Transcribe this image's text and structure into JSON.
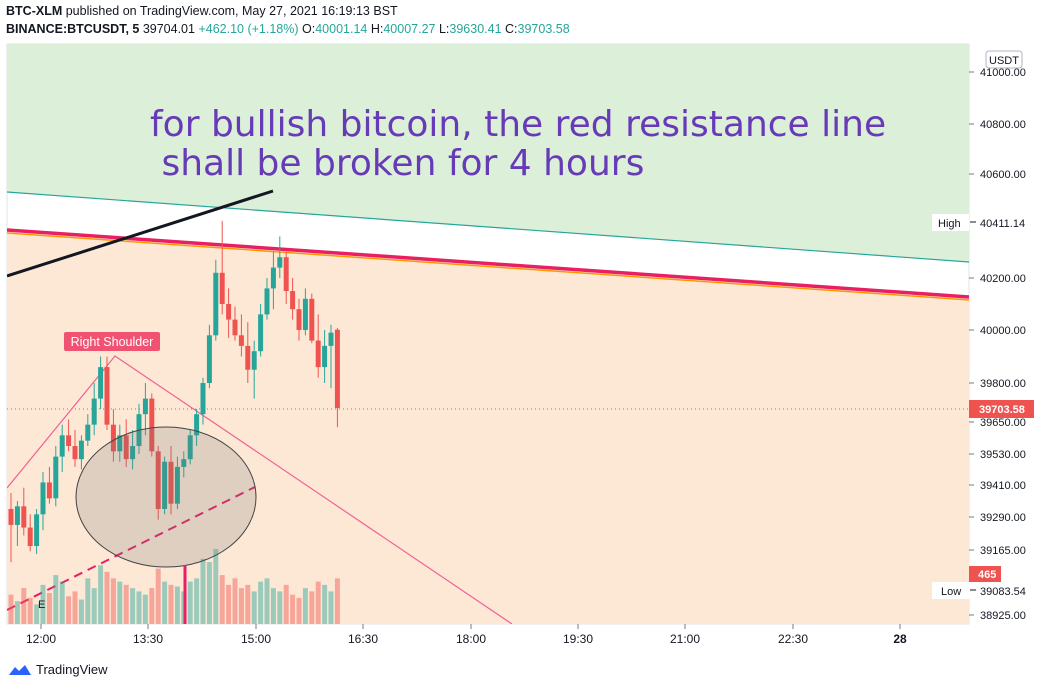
{
  "header": {
    "publish_line_symbol": "BTC-XLM",
    "publish_line_rest": "published on TradingView.com, May 27, 2021 16:19:13 BST",
    "symbol": "BINANCE:BTCUSDT, 5",
    "last": "39704.01",
    "change": "+462.10 (+1.18%)",
    "o_label": "O:",
    "o": "40001.14",
    "h_label": "H:",
    "h": "40007.27",
    "l_label": "L:",
    "l": "39630.41",
    "c_label": "C:",
    "c": "39703.58"
  },
  "footer": {
    "brand": "TradingView"
  },
  "colors": {
    "up": "#26a69a",
    "down": "#ef5350",
    "resistance": "#e91e63",
    "note": "#673ab7",
    "green_zone": "#dcefd9",
    "orange_zone": "#fde8d6"
  },
  "chart_data": {
    "type": "candlestick",
    "currency_badge": "USDT",
    "y_axis": {
      "ticks": [
        {
          "v": 41000,
          "label": "41000.00"
        },
        {
          "v": 40800,
          "label": "40800.00"
        },
        {
          "v": 40600,
          "label": "40600.00"
        },
        {
          "v": 40200,
          "label": "40200.00"
        },
        {
          "v": 40000,
          "label": "40000.00"
        },
        {
          "v": 39800,
          "label": "39800.00"
        },
        {
          "v": 39650,
          "label": "39650.00"
        },
        {
          "v": 39530,
          "label": "39530.00"
        },
        {
          "v": 39410,
          "label": "39410.00"
        },
        {
          "v": 39290,
          "label": "39290.00"
        },
        {
          "v": 39165,
          "label": "39165.00"
        },
        {
          "v": 38925,
          "label": "38925.00"
        }
      ]
    },
    "x_axis": {
      "ticks": [
        "12:00",
        "13:30",
        "15:00",
        "16:30",
        "18:00",
        "19:30",
        "21:00",
        "22:30",
        "28"
      ]
    },
    "price_labels": {
      "high": {
        "label": "High",
        "value": "40411.14"
      },
      "low": {
        "label": "Low",
        "value": "39083.54"
      },
      "last": "39703.58",
      "volume": "465"
    },
    "annotations": {
      "note_line1": "for bullish bitcoin, the red resistance line",
      "note_line2": " shall be broken for 4 hours",
      "shoulder": "Right Shoulder",
      "e_marker": "E"
    },
    "candles": [
      {
        "o": 39320,
        "h": 39380,
        "l": 39120,
        "c": 39260
      },
      {
        "o": 39260,
        "h": 39350,
        "l": 39180,
        "c": 39330
      },
      {
        "o": 39330,
        "h": 39400,
        "l": 39220,
        "c": 39250
      },
      {
        "o": 39250,
        "h": 39300,
        "l": 39160,
        "c": 39180
      },
      {
        "o": 39180,
        "h": 39320,
        "l": 39150,
        "c": 39300
      },
      {
        "o": 39300,
        "h": 39460,
        "l": 39240,
        "c": 39420
      },
      {
        "o": 39420,
        "h": 39480,
        "l": 39340,
        "c": 39360
      },
      {
        "o": 39360,
        "h": 39560,
        "l": 39330,
        "c": 39520
      },
      {
        "o": 39520,
        "h": 39640,
        "l": 39460,
        "c": 39600
      },
      {
        "o": 39600,
        "h": 39660,
        "l": 39540,
        "c": 39560
      },
      {
        "o": 39560,
        "h": 39620,
        "l": 39480,
        "c": 39510
      },
      {
        "o": 39510,
        "h": 39600,
        "l": 39470,
        "c": 39580
      },
      {
        "o": 39580,
        "h": 39680,
        "l": 39560,
        "c": 39640
      },
      {
        "o": 39640,
        "h": 39800,
        "l": 39600,
        "c": 39740
      },
      {
        "o": 39740,
        "h": 39900,
        "l": 39700,
        "c": 39860
      },
      {
        "o": 39860,
        "h": 39900,
        "l": 39620,
        "c": 39640
      },
      {
        "o": 39640,
        "h": 39700,
        "l": 39500,
        "c": 39540
      },
      {
        "o": 39540,
        "h": 39640,
        "l": 39500,
        "c": 39600
      },
      {
        "o": 39600,
        "h": 39660,
        "l": 39480,
        "c": 39510
      },
      {
        "o": 39510,
        "h": 39620,
        "l": 39470,
        "c": 39560
      },
      {
        "o": 39560,
        "h": 39720,
        "l": 39530,
        "c": 39680
      },
      {
        "o": 39680,
        "h": 39800,
        "l": 39600,
        "c": 39740
      },
      {
        "o": 39740,
        "h": 39760,
        "l": 39520,
        "c": 39540
      },
      {
        "o": 39540,
        "h": 39560,
        "l": 39280,
        "c": 39320
      },
      {
        "o": 39320,
        "h": 39520,
        "l": 39300,
        "c": 39500
      },
      {
        "o": 39500,
        "h": 39560,
        "l": 39300,
        "c": 39340
      },
      {
        "o": 39340,
        "h": 39520,
        "l": 39320,
        "c": 39480
      },
      {
        "o": 39480,
        "h": 39540,
        "l": 39440,
        "c": 39510
      },
      {
        "o": 39510,
        "h": 39620,
        "l": 39490,
        "c": 39600
      },
      {
        "o": 39600,
        "h": 39700,
        "l": 39560,
        "c": 39680
      },
      {
        "o": 39680,
        "h": 39820,
        "l": 39640,
        "c": 39800
      },
      {
        "o": 39800,
        "h": 40020,
        "l": 39780,
        "c": 39980
      },
      {
        "o": 39980,
        "h": 40270,
        "l": 39960,
        "c": 40220
      },
      {
        "o": 40220,
        "h": 40420,
        "l": 40060,
        "c": 40100
      },
      {
        "o": 40100,
        "h": 40160,
        "l": 39970,
        "c": 40040
      },
      {
        "o": 40040,
        "h": 40090,
        "l": 39960,
        "c": 39980
      },
      {
        "o": 39980,
        "h": 40060,
        "l": 39900,
        "c": 39940
      },
      {
        "o": 39940,
        "h": 40030,
        "l": 39800,
        "c": 39850
      },
      {
        "o": 39850,
        "h": 39960,
        "l": 39740,
        "c": 39920
      },
      {
        "o": 39920,
        "h": 40100,
        "l": 39900,
        "c": 40060
      },
      {
        "o": 40060,
        "h": 40200,
        "l": 40040,
        "c": 40160
      },
      {
        "o": 40160,
        "h": 40300,
        "l": 40080,
        "c": 40240
      },
      {
        "o": 40240,
        "h": 40360,
        "l": 40200,
        "c": 40280
      },
      {
        "o": 40280,
        "h": 40300,
        "l": 40100,
        "c": 40150
      },
      {
        "o": 40150,
        "h": 40200,
        "l": 40040,
        "c": 40080
      },
      {
        "o": 40080,
        "h": 40120,
        "l": 39960,
        "c": 40000
      },
      {
        "o": 40000,
        "h": 40160,
        "l": 39980,
        "c": 40120
      },
      {
        "o": 40120,
        "h": 40140,
        "l": 39950,
        "c": 39960
      },
      {
        "o": 39960,
        "h": 40060,
        "l": 39820,
        "c": 39860
      },
      {
        "o": 39860,
        "h": 40000,
        "l": 39800,
        "c": 39940
      },
      {
        "o": 39940,
        "h": 40020,
        "l": 39780,
        "c": 39990
      },
      {
        "o": 40001.14,
        "h": 40007.27,
        "l": 39630.41,
        "c": 39703.58
      }
    ],
    "volumes": [
      90,
      70,
      110,
      80,
      60,
      120,
      95,
      150,
      130,
      85,
      100,
      75,
      140,
      110,
      180,
      160,
      140,
      130,
      120,
      110,
      100,
      90,
      110,
      170,
      130,
      120,
      115,
      100,
      130,
      140,
      200,
      190,
      230,
      150,
      120,
      140,
      110,
      120,
      100,
      130,
      140,
      110,
      100,
      120,
      90,
      80,
      110,
      100,
      130,
      120,
      100,
      140
    ]
  }
}
